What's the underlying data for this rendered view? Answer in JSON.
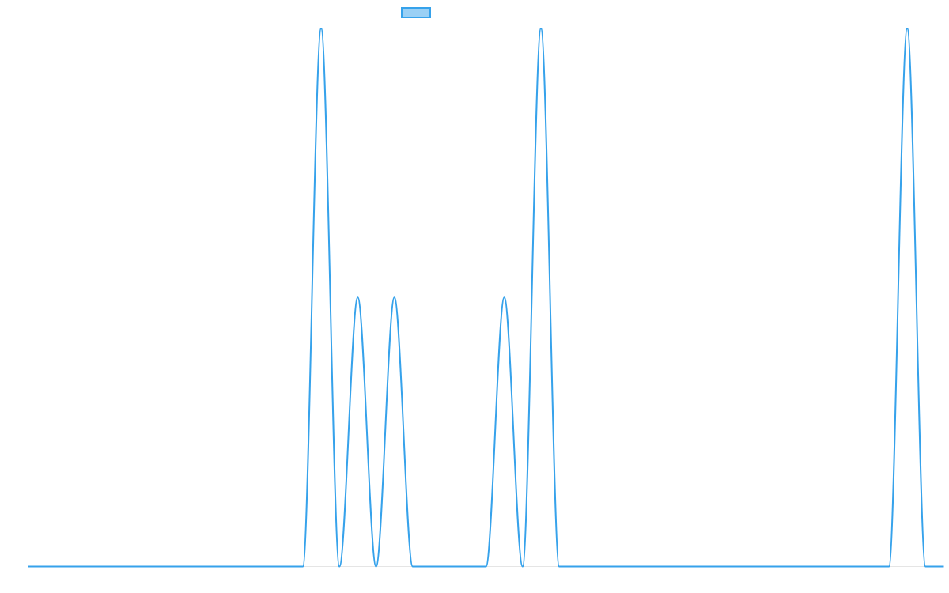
{
  "chart_data": {
    "type": "line",
    "series": [
      {
        "name": "",
        "color": "#36a2eb",
        "fill": "rgba(54, 162, 235, 0.5)",
        "values": [
          0,
          0,
          0,
          0,
          0,
          0,
          0,
          0,
          0,
          0,
          0,
          0,
          0,
          0,
          0,
          0,
          1,
          0,
          0.5,
          0,
          0.5,
          0,
          0,
          0,
          0,
          0,
          0.5,
          0,
          1,
          0,
          0,
          0,
          0,
          0,
          0,
          0,
          0,
          0,
          0,
          0,
          0,
          0,
          0,
          0,
          0,
          0,
          0,
          0,
          1,
          0,
          0
        ]
      }
    ],
    "ylim": [
      0,
      1
    ],
    "grid": false,
    "legend": "top-center",
    "show_tick_labels": false
  }
}
